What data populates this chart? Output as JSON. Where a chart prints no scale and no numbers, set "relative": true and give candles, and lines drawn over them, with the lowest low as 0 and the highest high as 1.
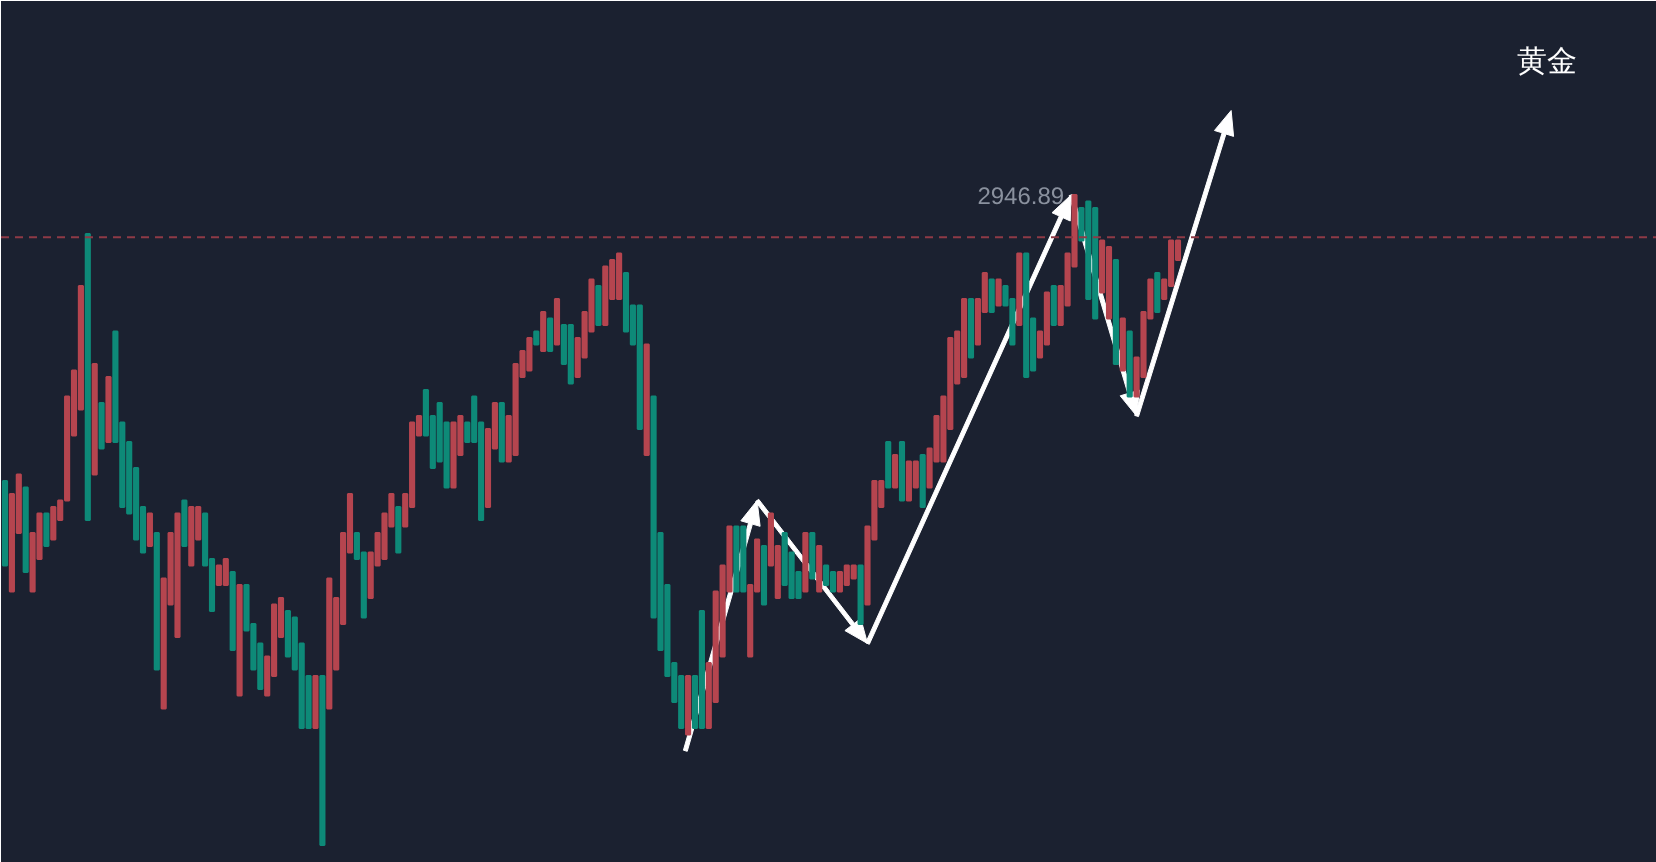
{
  "chart_data": {
    "type": "candlestick",
    "title": "黄金",
    "relative": true,
    "categories": [
      null,
      null,
      null,
      null,
      null,
      null,
      null,
      null,
      null,
      null,
      null,
      null,
      null,
      null,
      null,
      null,
      null,
      null,
      null,
      null,
      null,
      null,
      null,
      null,
      null,
      null,
      null,
      null,
      null,
      null,
      null,
      null,
      null,
      null,
      null,
      null,
      null,
      null,
      null,
      null,
      null,
      null,
      null,
      null,
      null,
      null,
      null,
      null,
      null,
      null,
      null,
      null,
      null,
      null,
      null,
      null,
      null,
      null,
      null,
      null,
      null,
      null,
      null,
      null,
      null,
      null,
      null,
      null,
      null,
      null,
      null,
      null,
      null,
      null,
      null,
      null,
      null,
      null,
      null,
      null,
      null,
      null,
      null,
      null,
      null,
      null,
      null,
      null,
      null,
      null,
      null,
      null,
      null,
      null,
      null,
      null,
      null,
      null,
      null,
      null,
      null,
      null,
      null,
      null,
      null,
      null,
      null,
      null,
      null,
      null,
      null,
      null,
      null,
      null,
      null,
      null,
      null,
      null,
      null,
      null,
      null,
      null,
      null,
      null,
      null,
      null,
      null,
      null,
      null,
      null,
      null,
      null,
      null,
      null,
      null,
      null,
      null,
      null,
      null,
      null,
      null,
      null,
      null,
      null,
      null,
      null,
      null,
      null,
      null,
      null,
      null,
      null,
      null,
      null,
      null,
      null,
      null,
      null,
      null,
      null,
      null,
      null,
      null,
      null,
      null,
      null,
      null,
      null,
      null,
      null,
      null
    ],
    "ohlc": [
      [
        0.56,
        0.56,
        0.43,
        0.43
      ],
      [
        0.39,
        0.54,
        0.39,
        0.54
      ],
      [
        0.48,
        0.57,
        0.48,
        0.57
      ],
      [
        0.55,
        0.55,
        0.42,
        0.42
      ],
      [
        0.39,
        0.48,
        0.39,
        0.48
      ],
      [
        0.44,
        0.51,
        0.44,
        0.51
      ],
      [
        0.51,
        0.51,
        0.46,
        0.46
      ],
      [
        0.47,
        0.52,
        0.47,
        0.52
      ],
      [
        0.5,
        0.53,
        0.5,
        0.53
      ],
      [
        0.53,
        0.69,
        0.53,
        0.69
      ],
      [
        0.63,
        0.73,
        0.63,
        0.73
      ],
      [
        0.67,
        0.86,
        0.67,
        0.86
      ],
      [
        0.94,
        0.94,
        0.5,
        0.5
      ],
      [
        0.57,
        0.74,
        0.57,
        0.74
      ],
      [
        0.68,
        0.68,
        0.61,
        0.61
      ],
      [
        0.62,
        0.72,
        0.62,
        0.72
      ],
      [
        0.79,
        0.79,
        0.62,
        0.62
      ],
      [
        0.65,
        0.65,
        0.52,
        0.52
      ],
      [
        0.62,
        0.62,
        0.51,
        0.51
      ],
      [
        0.58,
        0.58,
        0.47,
        0.47
      ],
      [
        0.52,
        0.52,
        0.45,
        0.45
      ],
      [
        0.46,
        0.51,
        0.46,
        0.51
      ],
      [
        0.48,
        0.48,
        0.27,
        0.27
      ],
      [
        0.21,
        0.41,
        0.21,
        0.41
      ],
      [
        0.37,
        0.48,
        0.37,
        0.48
      ],
      [
        0.32,
        0.51,
        0.32,
        0.51
      ],
      [
        0.53,
        0.53,
        0.46,
        0.46
      ],
      [
        0.43,
        0.52,
        0.43,
        0.52
      ],
      [
        0.47,
        0.52,
        0.47,
        0.52
      ],
      [
        0.51,
        0.51,
        0.43,
        0.43
      ],
      [
        0.44,
        0.44,
        0.36,
        0.36
      ],
      [
        0.4,
        0.43,
        0.4,
        0.43
      ],
      [
        0.4,
        0.44,
        0.4,
        0.44
      ],
      [
        0.42,
        0.42,
        0.3,
        0.3
      ],
      [
        0.23,
        0.4,
        0.23,
        0.4
      ],
      [
        0.4,
        0.4,
        0.33,
        0.33
      ],
      [
        0.34,
        0.34,
        0.27,
        0.27
      ],
      [
        0.31,
        0.31,
        0.24,
        0.24
      ],
      [
        0.23,
        0.29,
        0.23,
        0.29
      ],
      [
        0.26,
        0.37,
        0.26,
        0.37
      ],
      [
        0.32,
        0.38,
        0.32,
        0.38
      ],
      [
        0.36,
        0.36,
        0.29,
        0.29
      ],
      [
        0.35,
        0.35,
        0.27,
        0.27
      ],
      [
        0.31,
        0.31,
        0.18,
        0.18
      ],
      [
        0.26,
        0.26,
        0.18,
        0.18
      ],
      [
        0.18,
        0.26,
        0.18,
        0.26
      ],
      [
        0.26,
        0.26,
        0.0,
        0.0
      ],
      [
        0.21,
        0.41,
        0.21,
        0.41
      ],
      [
        0.27,
        0.38,
        0.27,
        0.38
      ],
      [
        0.34,
        0.48,
        0.34,
        0.48
      ],
      [
        0.45,
        0.54,
        0.45,
        0.54
      ],
      [
        0.48,
        0.48,
        0.44,
        0.44
      ],
      [
        0.45,
        0.45,
        0.35,
        0.35
      ],
      [
        0.38,
        0.45,
        0.38,
        0.45
      ],
      [
        0.43,
        0.48,
        0.43,
        0.48
      ],
      [
        0.44,
        0.51,
        0.44,
        0.51
      ],
      [
        0.49,
        0.54,
        0.49,
        0.54
      ],
      [
        0.52,
        0.52,
        0.45,
        0.45
      ],
      [
        0.49,
        0.54,
        0.49,
        0.54
      ],
      [
        0.52,
        0.65,
        0.52,
        0.65
      ],
      [
        0.63,
        0.66,
        0.63,
        0.66
      ],
      [
        0.7,
        0.7,
        0.63,
        0.63
      ],
      [
        0.66,
        0.66,
        0.58,
        0.58
      ],
      [
        0.68,
        0.68,
        0.59,
        0.59
      ],
      [
        0.65,
        0.65,
        0.55,
        0.55
      ],
      [
        0.55,
        0.65,
        0.55,
        0.65
      ],
      [
        0.6,
        0.66,
        0.6,
        0.66
      ],
      [
        0.65,
        0.65,
        0.62,
        0.62
      ],
      [
        0.69,
        0.69,
        0.62,
        0.62
      ],
      [
        0.65,
        0.65,
        0.5,
        0.5
      ],
      [
        0.52,
        0.64,
        0.52,
        0.64
      ],
      [
        0.61,
        0.68,
        0.61,
        0.68
      ],
      [
        0.68,
        0.68,
        0.59,
        0.59
      ],
      [
        0.59,
        0.66,
        0.59,
        0.66
      ],
      [
        0.6,
        0.74,
        0.6,
        0.74
      ],
      [
        0.72,
        0.76,
        0.72,
        0.76
      ],
      [
        0.73,
        0.78,
        0.73,
        0.78
      ],
      [
        0.79,
        0.79,
        0.77,
        0.77
      ],
      [
        0.76,
        0.82,
        0.76,
        0.82
      ],
      [
        0.81,
        0.81,
        0.76,
        0.76
      ],
      [
        0.77,
        0.84,
        0.77,
        0.84
      ],
      [
        0.8,
        0.8,
        0.74,
        0.74
      ],
      [
        0.8,
        0.8,
        0.71,
        0.71
      ],
      [
        0.72,
        0.78,
        0.72,
        0.78
      ],
      [
        0.75,
        0.82,
        0.75,
        0.82
      ],
      [
        0.79,
        0.87,
        0.79,
        0.87
      ],
      [
        0.86,
        0.86,
        0.8,
        0.8
      ],
      [
        0.8,
        0.89,
        0.8,
        0.89
      ],
      [
        0.84,
        0.9,
        0.84,
        0.9
      ],
      [
        0.84,
        0.91,
        0.84,
        0.91
      ],
      [
        0.88,
        0.88,
        0.79,
        0.79
      ],
      [
        0.83,
        0.83,
        0.77,
        0.77
      ],
      [
        0.83,
        0.83,
        0.64,
        0.64
      ],
      [
        0.6,
        0.77,
        0.6,
        0.77
      ],
      [
        0.69,
        0.69,
        0.35,
        0.35
      ],
      [
        0.48,
        0.48,
        0.3,
        0.3
      ],
      [
        0.4,
        0.4,
        0.26,
        0.26
      ],
      [
        0.28,
        0.28,
        0.22,
        0.22
      ],
      [
        0.26,
        0.26,
        0.18,
        0.18
      ],
      [
        0.17,
        0.26,
        0.17,
        0.26
      ],
      [
        0.26,
        0.26,
        0.18,
        0.18
      ],
      [
        0.36,
        0.36,
        0.18,
        0.18
      ],
      [
        0.18,
        0.28,
        0.18,
        0.28
      ],
      [
        0.22,
        0.39,
        0.22,
        0.39
      ],
      [
        0.29,
        0.43,
        0.29,
        0.43
      ],
      [
        0.39,
        0.49,
        0.39,
        0.49
      ],
      [
        0.49,
        0.49,
        0.39,
        0.39
      ],
      [
        0.49,
        0.49,
        0.39,
        0.39
      ],
      [
        0.29,
        0.4,
        0.29,
        0.4
      ],
      [
        0.39,
        0.47,
        0.39,
        0.47
      ],
      [
        0.46,
        0.46,
        0.37,
        0.37
      ],
      [
        0.43,
        0.51,
        0.43,
        0.51
      ],
      [
        0.38,
        0.46,
        0.38,
        0.46
      ],
      [
        0.48,
        0.48,
        0.4,
        0.4
      ],
      [
        0.45,
        0.45,
        0.38,
        0.38
      ],
      [
        0.42,
        0.42,
        0.38,
        0.38
      ],
      [
        0.39,
        0.48,
        0.39,
        0.48
      ],
      [
        0.48,
        0.48,
        0.41,
        0.41
      ],
      [
        0.39,
        0.46,
        0.39,
        0.46
      ],
      [
        0.43,
        0.43,
        0.4,
        0.4
      ],
      [
        0.42,
        0.42,
        0.39,
        0.39
      ],
      [
        0.39,
        0.42,
        0.39,
        0.42
      ],
      [
        0.4,
        0.43,
        0.4,
        0.43
      ],
      [
        0.41,
        0.43,
        0.41,
        0.43
      ],
      [
        0.43,
        0.43,
        0.34,
        0.34
      ],
      [
        0.37,
        0.49,
        0.37,
        0.49
      ],
      [
        0.47,
        0.56,
        0.47,
        0.56
      ],
      [
        0.52,
        0.56,
        0.52,
        0.56
      ],
      [
        0.62,
        0.62,
        0.55,
        0.55
      ],
      [
        0.55,
        0.6,
        0.55,
        0.6
      ],
      [
        0.62,
        0.62,
        0.53,
        0.53
      ],
      [
        0.53,
        0.59,
        0.53,
        0.59
      ],
      [
        0.55,
        0.59,
        0.55,
        0.59
      ],
      [
        0.6,
        0.6,
        0.52,
        0.52
      ],
      [
        0.55,
        0.61,
        0.55,
        0.61
      ],
      [
        0.59,
        0.66,
        0.59,
        0.66
      ],
      [
        0.59,
        0.69,
        0.59,
        0.69
      ],
      [
        0.64,
        0.78,
        0.64,
        0.78
      ],
      [
        0.71,
        0.79,
        0.71,
        0.79
      ],
      [
        0.72,
        0.84,
        0.72,
        0.84
      ],
      [
        0.84,
        0.84,
        0.75,
        0.75
      ],
      [
        0.77,
        0.84,
        0.77,
        0.84
      ],
      [
        0.82,
        0.88,
        0.82,
        0.88
      ],
      [
        0.87,
        0.87,
        0.82,
        0.82
      ],
      [
        0.83,
        0.87,
        0.83,
        0.87
      ],
      [
        0.86,
        0.86,
        0.83,
        0.83
      ],
      [
        0.84,
        0.84,
        0.77,
        0.77
      ],
      [
        0.8,
        0.91,
        0.8,
        0.91
      ],
      [
        0.91,
        0.91,
        0.72,
        0.72
      ],
      [
        0.81,
        0.81,
        0.73,
        0.73
      ],
      [
        0.75,
        0.79,
        0.75,
        0.79
      ],
      [
        0.77,
        0.85,
        0.77,
        0.85
      ],
      [
        0.86,
        0.86,
        0.8,
        0.8
      ],
      [
        0.8,
        0.86,
        0.8,
        0.86
      ],
      [
        0.83,
        0.91,
        0.83,
        0.91
      ],
      [
        0.89,
        1.0,
        0.89,
        1.0
      ],
      [
        0.98,
        0.98,
        0.93,
        0.93
      ],
      [
        0.99,
        0.99,
        0.84,
        0.84
      ],
      [
        0.98,
        0.98,
        0.81,
        0.81
      ],
      [
        0.85,
        0.93,
        0.85,
        0.93
      ],
      [
        0.81,
        0.92,
        0.81,
        0.92
      ],
      [
        0.9,
        0.9,
        0.74,
        0.74
      ],
      [
        0.73,
        0.81,
        0.73,
        0.81
      ],
      [
        0.79,
        0.79,
        0.69,
        0.69
      ],
      [
        0.69,
        0.75,
        0.69,
        0.75
      ],
      [
        0.72,
        0.82,
        0.72,
        0.82
      ],
      [
        0.81,
        0.87,
        0.81,
        0.87
      ],
      [
        0.88,
        0.88,
        0.82,
        0.82
      ],
      [
        0.84,
        0.87,
        0.84,
        0.87
      ],
      [
        0.86,
        0.93,
        0.86,
        0.93
      ],
      [
        0.9,
        0.93,
        0.9,
        0.93
      ]
    ],
    "colors": [
      "#0e8a78",
      "#b5454f",
      "#b5454f",
      "#0e8a78",
      "#b5454f",
      "#b5454f",
      "#0e8a78",
      "#b5454f",
      "#b5454f",
      "#b5454f",
      "#b5454f",
      "#b5454f",
      "#0e8a78",
      "#b5454f",
      "#0e8a78",
      "#b5454f",
      "#0e8a78",
      "#0e8a78",
      "#0e8a78",
      "#0e8a78",
      "#0e8a78",
      "#b5454f",
      "#0e8a78",
      "#b5454f",
      "#b5454f",
      "#b5454f",
      "#0e8a78",
      "#b5454f",
      "#b5454f",
      "#0e8a78",
      "#0e8a78",
      "#b5454f",
      "#b5454f",
      "#0e8a78",
      "#b5454f",
      "#0e8a78",
      "#0e8a78",
      "#0e8a78",
      "#b5454f",
      "#b5454f",
      "#b5454f",
      "#0e8a78",
      "#0e8a78",
      "#0e8a78",
      "#0e8a78",
      "#b5454f",
      "#0e8a78",
      "#b5454f",
      "#b5454f",
      "#b5454f",
      "#b5454f",
      "#0e8a78",
      "#0e8a78",
      "#b5454f",
      "#b5454f",
      "#b5454f",
      "#b5454f",
      "#0e8a78",
      "#b5454f",
      "#b5454f",
      "#b5454f",
      "#0e8a78",
      "#0e8a78",
      "#0e8a78",
      "#0e8a78",
      "#b5454f",
      "#b5454f",
      "#0e8a78",
      "#0e8a78",
      "#0e8a78",
      "#b5454f",
      "#b5454f",
      "#0e8a78",
      "#b5454f",
      "#b5454f",
      "#b5454f",
      "#b5454f",
      "#0e8a78",
      "#b5454f",
      "#0e8a78",
      "#b5454f",
      "#0e8a78",
      "#0e8a78",
      "#b5454f",
      "#b5454f",
      "#b5454f",
      "#0e8a78",
      "#b5454f",
      "#b5454f",
      "#b5454f",
      "#0e8a78",
      "#0e8a78",
      "#0e8a78",
      "#b5454f",
      "#0e8a78",
      "#0e8a78",
      "#0e8a78",
      "#0e8a78",
      "#0e8a78",
      "#b5454f",
      "#0e8a78",
      "#0e8a78",
      "#b5454f",
      "#b5454f",
      "#b5454f",
      "#b5454f",
      "#0e8a78",
      "#0e8a78",
      "#b5454f",
      "#b5454f",
      "#0e8a78",
      "#b5454f",
      "#b5454f",
      "#0e8a78",
      "#0e8a78",
      "#0e8a78",
      "#b5454f",
      "#0e8a78",
      "#b5454f",
      "#0e8a78",
      "#0e8a78",
      "#b5454f",
      "#b5454f",
      "#b5454f",
      "#0e8a78",
      "#b5454f",
      "#b5454f",
      "#b5454f",
      "#0e8a78",
      "#b5454f",
      "#0e8a78",
      "#b5454f",
      "#b5454f",
      "#0e8a78",
      "#b5454f",
      "#b5454f",
      "#b5454f",
      "#b5454f",
      "#b5454f",
      "#b5454f",
      "#0e8a78",
      "#b5454f",
      "#b5454f",
      "#0e8a78",
      "#b5454f",
      "#0e8a78",
      "#0e8a78",
      "#b5454f",
      "#0e8a78",
      "#0e8a78",
      "#b5454f",
      "#b5454f",
      "#0e8a78",
      "#b5454f",
      "#b5454f",
      "#b5454f",
      "#0e8a78",
      "#0e8a78",
      "#0e8a78",
      "#b5454f",
      "#b5454f",
      "#0e8a78",
      "#b5454f",
      "#0e8a78",
      "#b5454f",
      "#b5454f",
      "#b5454f",
      "#0e8a78",
      "#b5454f",
      "#b5454f",
      "#b5454f"
    ],
    "ref_lines": [
      {
        "axis": "y",
        "value": 0.935,
        "label": null,
        "color": "#8e3a46",
        "line_style": "dashed"
      }
    ],
    "annotations": [
      "2946.89"
    ]
  }
}
